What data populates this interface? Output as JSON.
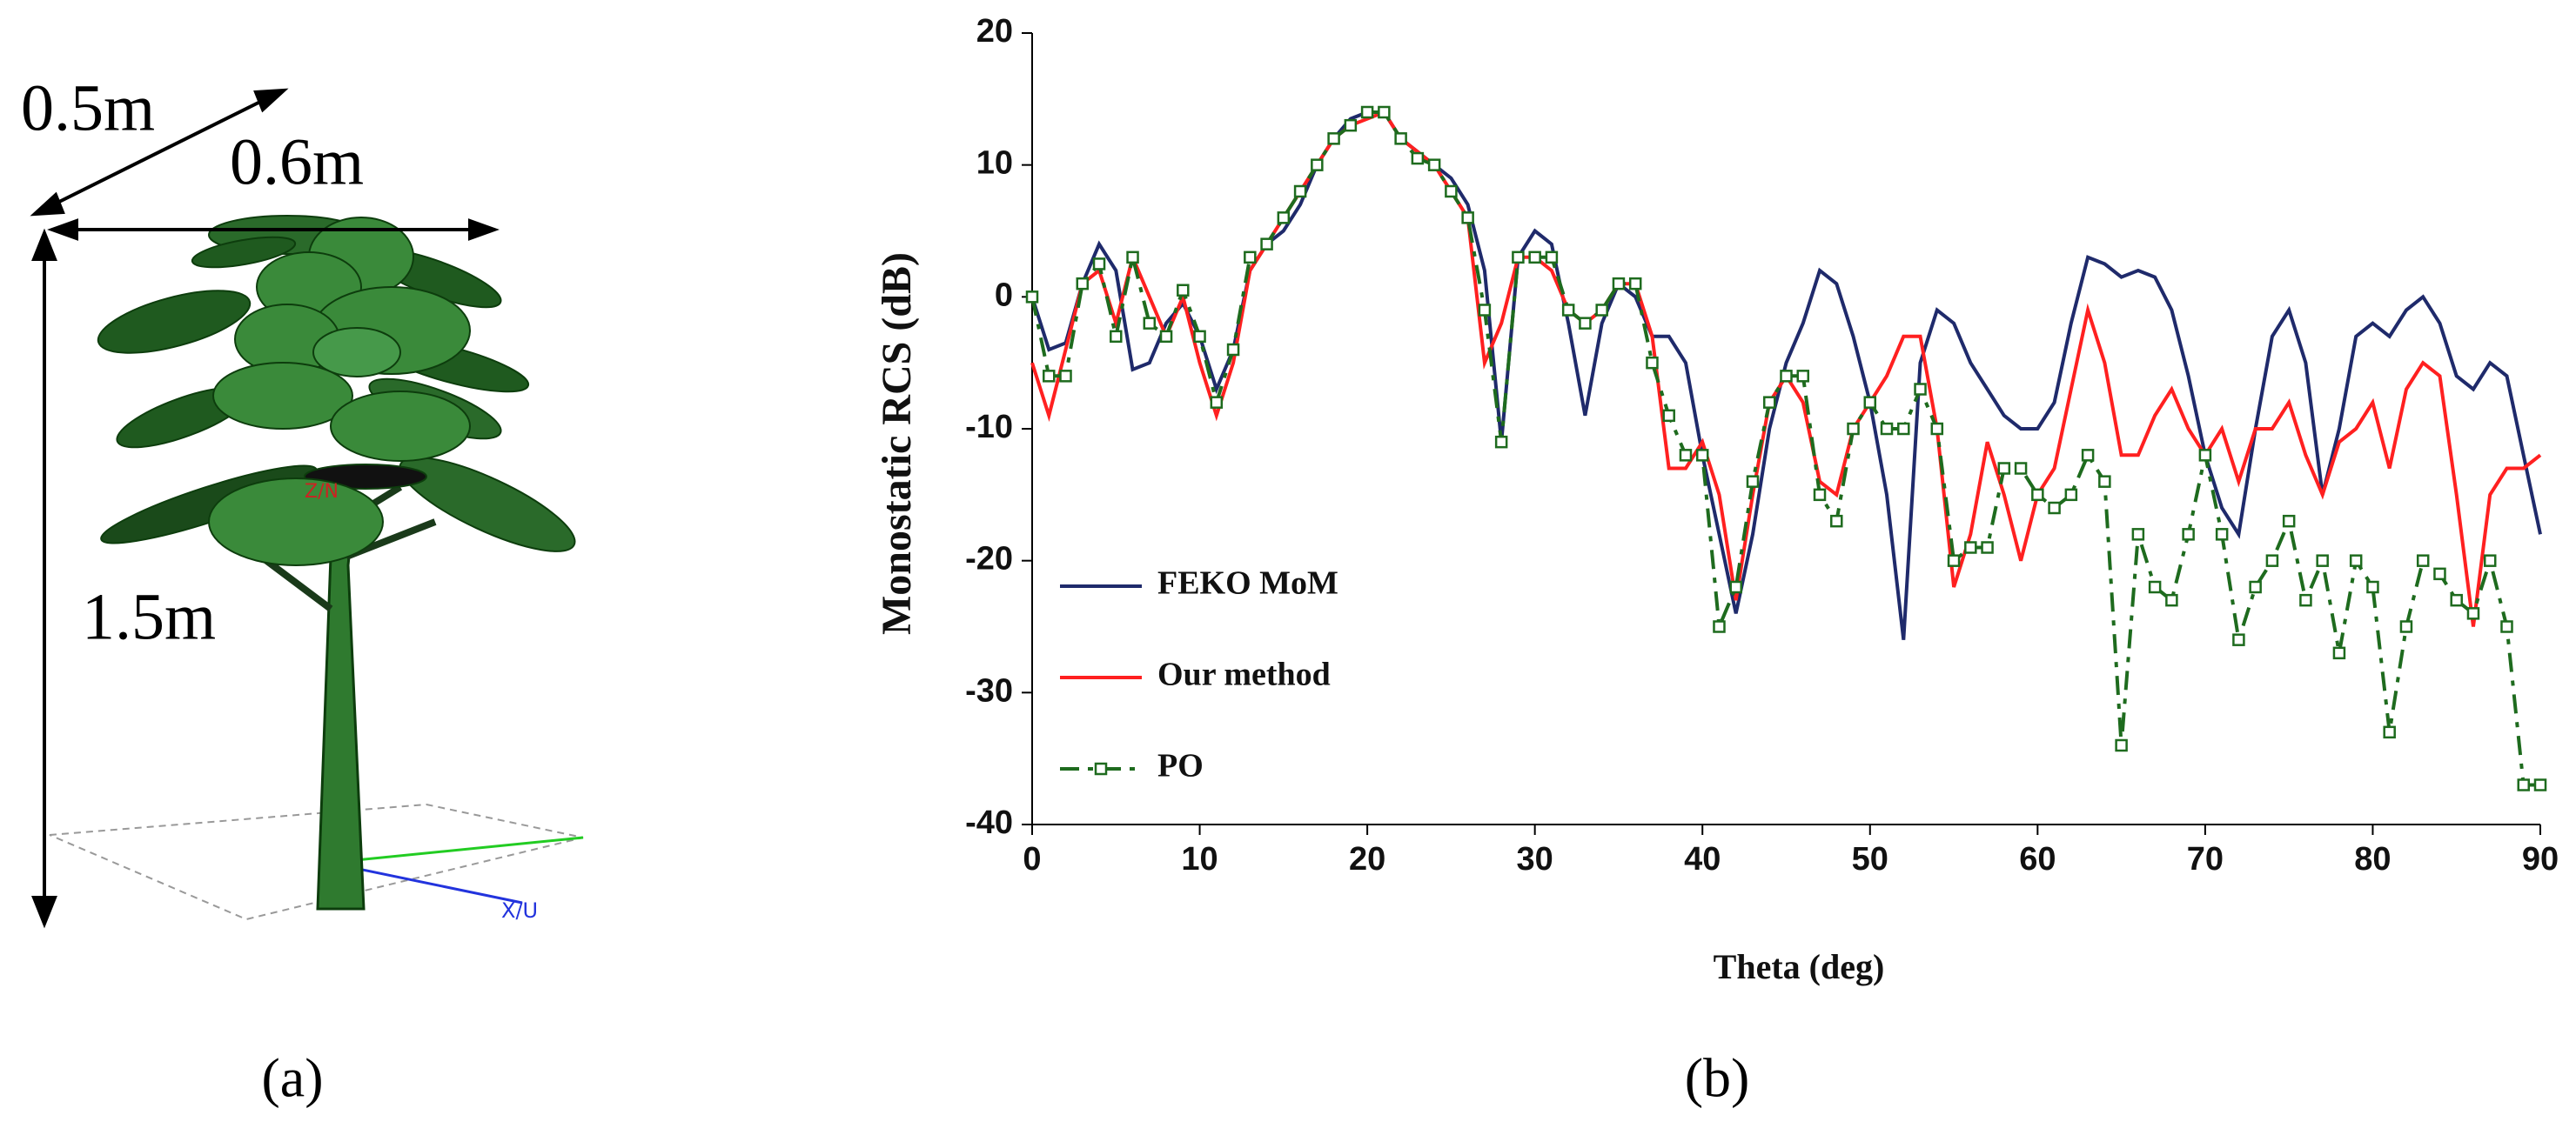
{
  "panel_a": {
    "labels": {
      "depth": "0.5m",
      "width": "0.6m",
      "height": "1.5m",
      "z_axis": "Z/N",
      "x_axis": "X/U"
    },
    "caption": "(a)"
  },
  "chart_data": {
    "type": "line",
    "caption": "(b)",
    "xlabel": "Theta (deg)",
    "ylabel": "Monostatic RCS (dB)",
    "xlim": [
      0,
      90
    ],
    "xticks": [
      0,
      10,
      20,
      30,
      40,
      50,
      60,
      70,
      80,
      90
    ],
    "ylim": [
      -40,
      20
    ],
    "yticks": [
      -40,
      -30,
      -20,
      -10,
      0,
      10,
      20
    ],
    "grid": false,
    "legend": "lower left",
    "x": [
      0,
      1,
      2,
      3,
      4,
      5,
      6,
      7,
      8,
      9,
      10,
      11,
      12,
      13,
      14,
      15,
      16,
      17,
      18,
      19,
      20,
      21,
      22,
      23,
      24,
      25,
      26,
      27,
      28,
      29,
      30,
      31,
      32,
      33,
      34,
      35,
      36,
      37,
      38,
      39,
      40,
      41,
      42,
      43,
      44,
      45,
      46,
      47,
      48,
      49,
      50,
      51,
      52,
      53,
      54,
      55,
      56,
      57,
      58,
      59,
      60,
      61,
      62,
      63,
      64,
      65,
      66,
      67,
      68,
      69,
      70,
      71,
      72,
      73,
      74,
      75,
      76,
      77,
      78,
      79,
      80,
      81,
      82,
      83,
      84,
      85,
      86,
      87,
      88,
      89,
      90
    ],
    "series": [
      {
        "name": "FEKO MoM",
        "color": "#1f2a6b",
        "style": "solid",
        "values": [
          0,
          -4,
          -3.5,
          1,
          4,
          2,
          -5.5,
          -5,
          -2,
          -0.5,
          -3,
          -7,
          -4,
          2,
          4,
          5,
          7,
          10,
          12,
          13.5,
          14,
          14,
          12,
          11,
          10,
          9,
          7,
          2,
          -11,
          3,
          5,
          4,
          -2,
          -9,
          -2,
          1,
          0,
          -3,
          -3,
          -5,
          -12,
          -18,
          -24,
          -18,
          -10,
          -5,
          -2,
          2,
          1,
          -3,
          -8,
          -15,
          -26,
          -5,
          -1,
          -2,
          -5,
          -7,
          -9,
          -10,
          -10,
          -8,
          -2,
          3,
          2.5,
          1.5,
          2,
          1.5,
          -1,
          -6,
          -12,
          -16,
          -18,
          -10,
          -3,
          -1,
          -5,
          -15,
          -10,
          -3,
          -2,
          -3,
          -1,
          0,
          -2,
          -6,
          -7,
          -5,
          -6,
          -12,
          -18
        ]
      },
      {
        "name": "Our method",
        "color": "#ff2020",
        "style": "solid",
        "values": [
          -5,
          -9,
          -4,
          1,
          2,
          -2,
          3,
          0,
          -3,
          0,
          -5,
          -9,
          -5,
          2,
          4,
          6,
          8,
          10,
          12,
          13,
          13.5,
          14,
          12,
          11,
          10,
          8,
          6,
          -5,
          -2,
          3,
          3,
          2,
          -1,
          -2,
          -1,
          1,
          1,
          -3,
          -13,
          -13,
          -11,
          -15,
          -23,
          -15,
          -8,
          -6,
          -8,
          -14,
          -15,
          -10,
          -8,
          -6,
          -3,
          -3,
          -10,
          -22,
          -18,
          -11,
          -15,
          -20,
          -15,
          -13,
          -7,
          -1,
          -5,
          -12,
          -12,
          -9,
          -7,
          -10,
          -12,
          -10,
          -14,
          -10,
          -10,
          -8,
          -12,
          -15,
          -11,
          -10,
          -8,
          -13,
          -7,
          -5,
          -6,
          -15,
          -25,
          -15,
          -13,
          -13,
          -12
        ]
      },
      {
        "name": "PO",
        "color": "#1e6b1e",
        "style": "dashdot",
        "values": [
          0,
          -6,
          -6,
          1,
          2.5,
          -3,
          3,
          -2,
          -3,
          0.5,
          -3,
          -8,
          -4,
          3,
          4,
          6,
          8,
          10,
          12,
          13,
          14,
          14,
          12,
          10.5,
          10,
          8,
          6,
          -1,
          -11,
          3,
          3,
          3,
          -1,
          -2,
          -1,
          1,
          1,
          -5,
          -9,
          -12,
          -12,
          -25,
          -22,
          -14,
          -8,
          -6,
          -6,
          -15,
          -17,
          -10,
          -8,
          -10,
          -10,
          -7,
          -10,
          -20,
          -19,
          -19,
          -13,
          -13,
          -15,
          -16,
          -15,
          -12,
          -14,
          -34,
          -18,
          -22,
          -23,
          -18,
          -12,
          -18,
          -26,
          -22,
          -20,
          -17,
          -23,
          -20,
          -27,
          -20,
          -22,
          -33,
          -25,
          -20,
          -21,
          -23,
          -24,
          -20,
          -25,
          -37,
          -37
        ]
      }
    ]
  }
}
